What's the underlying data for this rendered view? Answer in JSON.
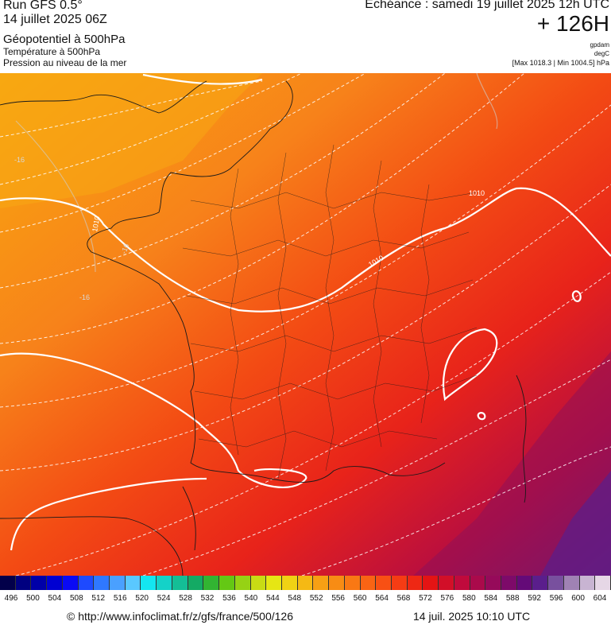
{
  "header": {
    "run": "Run GFS 0.5°",
    "date": "14 juillet 2025 06Z",
    "var1": "Géopotentiel à 500hPa",
    "var2": "Température à 500hPa",
    "var3": "Pression au niveau de la mer",
    "echeance": "Echéance : samedi 19 juillet 2025 12h UTC",
    "hour": "+ 126H",
    "unit1": "gpdam",
    "unit2": "degC",
    "range": "[Max 1018.3 | Min 1004.5] hPa"
  },
  "map": {
    "isobar_labels": [
      "1010",
      "1010",
      "1010"
    ],
    "temp_labels": [
      "-16",
      "-16",
      "-16"
    ]
  },
  "scale": {
    "ticks": [
      "496",
      "500",
      "504",
      "508",
      "512",
      "516",
      "520",
      "524",
      "528",
      "532",
      "536",
      "540",
      "544",
      "548",
      "552",
      "556",
      "560",
      "564",
      "568",
      "572",
      "576",
      "580",
      "584",
      "588",
      "592",
      "596",
      "600",
      "604"
    ],
    "colors": [
      "#02004a",
      "#000080",
      "#0000a8",
      "#0000d2",
      "#0a0af5",
      "#1e4aff",
      "#2f78ff",
      "#4aa0ff",
      "#5ac8ff",
      "#14e6f0",
      "#14d2c8",
      "#14be96",
      "#14aa64",
      "#32b432",
      "#64c814",
      "#96d214",
      "#c8dc14",
      "#e6e614",
      "#f0d214",
      "#f5b914",
      "#f7a014",
      "#f88c14",
      "#f97814",
      "#f96414",
      "#f85014",
      "#f53c14",
      "#ee2814",
      "#e41414",
      "#d20f28",
      "#c00a3c",
      "#aa0a4b",
      "#960a5a",
      "#7d0a69",
      "#640a78",
      "#5a1e8c",
      "#78509e",
      "#a082b4",
      "#c8b4d2",
      "#e6d7e6"
    ]
  },
  "footer": {
    "url": "© http://www.infoclimat.fr/z/gfs/france/500/126",
    "timestamp": "14 juil. 2025 10:10 UTC"
  }
}
